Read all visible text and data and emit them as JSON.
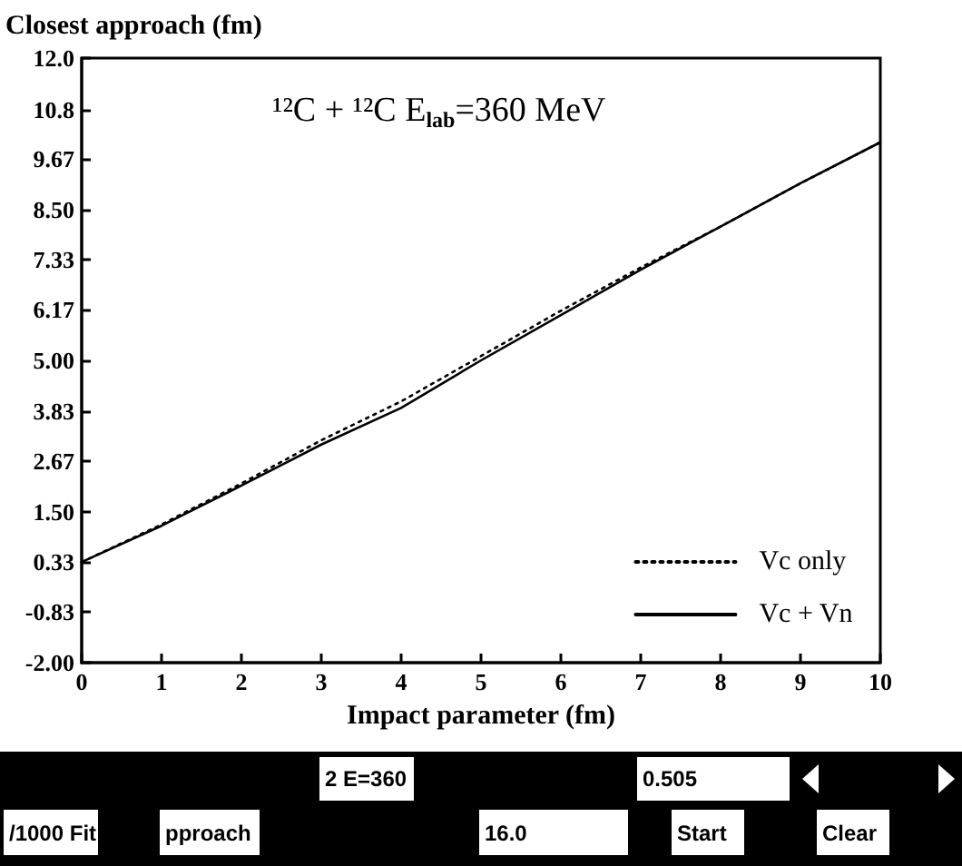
{
  "chart_data": {
    "type": "line",
    "title": "¹²C + ¹²C E$_{lab}$=360 MeV",
    "xlabel": "Impact parameter (fm)",
    "ylabel": "Closest approach (fm)",
    "x": [
      0,
      1,
      2,
      3,
      4,
      5,
      6,
      7,
      8,
      9,
      10
    ],
    "series": [
      {
        "name": "Vc only",
        "color": "#000000",
        "line_style": "dotted",
        "values": [
          0.33,
          1.2,
          2.15,
          3.15,
          4.05,
          5.1,
          6.15,
          7.15,
          8.1,
          9.1,
          10.05
        ]
      },
      {
        "name": "Vc + Vn",
        "color": "#000000",
        "line_style": "solid",
        "values": [
          0.33,
          1.17,
          2.1,
          3.05,
          3.9,
          5.0,
          6.05,
          7.1,
          8.1,
          9.1,
          10.05
        ]
      }
    ],
    "xlim": [
      0,
      10
    ],
    "xticks": [
      0,
      1,
      2,
      3,
      4,
      5,
      6,
      7,
      8,
      9,
      10
    ],
    "ylim": [
      -2,
      12
    ],
    "yticks": [
      {
        "value": -2,
        "label": "-2.00"
      },
      {
        "value": -0.83,
        "label": "-0.83"
      },
      {
        "value": 0.33,
        "label": "0.33"
      },
      {
        "value": 1.5,
        "label": "1.50"
      },
      {
        "value": 2.67,
        "label": "2.67"
      },
      {
        "value": 3.83,
        "label": "3.83"
      },
      {
        "value": 5,
        "label": "5.00"
      },
      {
        "value": 6.17,
        "label": "6.17"
      },
      {
        "value": 7.33,
        "label": "7.33"
      },
      {
        "value": 8.5,
        "label": "8.50"
      },
      {
        "value": 9.67,
        "label": "9.67"
      },
      {
        "value": 10.8,
        "label": "10.8"
      },
      {
        "value": 12,
        "label": "12.0"
      }
    ],
    "grid": false,
    "legend": "bottom right",
    "marker": "none",
    "annotations": [
      "2 E=360",
      "0.505",
      "/1000 Fit",
      "pproach",
      "16.0",
      "Start",
      "Clear"
    ]
  }
}
